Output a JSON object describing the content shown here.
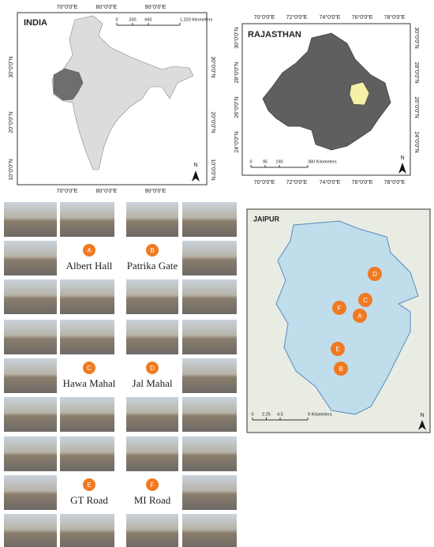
{
  "india_map": {
    "title": "INDIA",
    "x_labels": [
      "70°0'0\"E",
      "80°0'0\"E",
      "90°0'0\"E"
    ],
    "y_labels": [
      "30°0'0\"N",
      "20°0'0\"N",
      "10°0'0\"N"
    ],
    "scale": [
      "0",
      "330",
      "660",
      "1,320 Kilometers"
    ],
    "north": "N"
  },
  "rajasthan_map": {
    "title": "RAJASTHAN",
    "x_labels": [
      "70°0'0\"E",
      "72°0'0\"E",
      "74°0'0\"E",
      "76°0'0\"E",
      "78°0'0\"E"
    ],
    "y_labels": [
      "30°0'0\"N",
      "28°0'0\"N",
      "26°0'0\"N",
      "24°0'0\"N"
    ],
    "scale": [
      "0",
      "95",
      "190",
      "380 Kilometers"
    ],
    "north": "N"
  },
  "jaipur_map": {
    "title": "JAIPUR",
    "markers": [
      "A",
      "B",
      "C",
      "D",
      "E",
      "F"
    ],
    "scale": [
      "0",
      "2.25",
      "4.5",
      "9 Kilometers"
    ],
    "north": "N"
  },
  "sites": [
    {
      "letter": "A",
      "name": "Albert Hall"
    },
    {
      "letter": "B",
      "name": "Patrika Gate"
    },
    {
      "letter": "C",
      "name": "Hawa Mahal"
    },
    {
      "letter": "D",
      "name": "Jal Mahal"
    },
    {
      "letter": "E",
      "name": "GT Road"
    },
    {
      "letter": "F",
      "name": "MI Road"
    }
  ]
}
